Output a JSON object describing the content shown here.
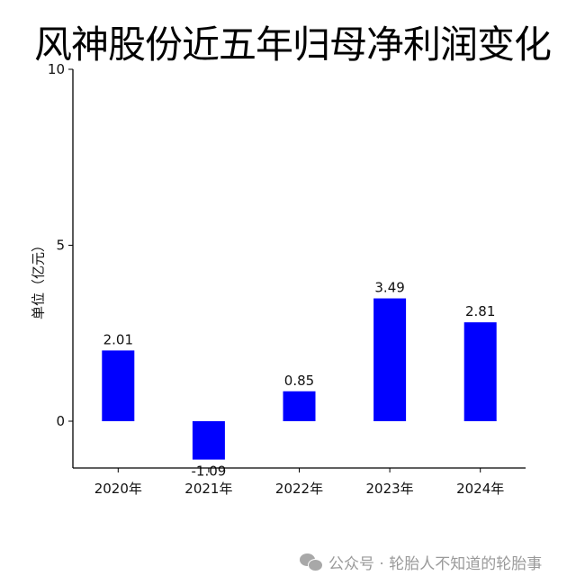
{
  "title": "风神股份近五年归母净利润变化",
  "watermark": {
    "icon": "wechat-icon",
    "text": "公众号 · 轮胎人不知道的轮胎事"
  },
  "colors": {
    "bar": "#0000ff",
    "axis": "#000000",
    "watermark": "#9a9a9a"
  },
  "chart_data": {
    "type": "bar",
    "title": "风神股份近五年归母净利润变化",
    "xlabel": "",
    "ylabel": "单位（亿元）",
    "categories": [
      "2020年",
      "2021年",
      "2022年",
      "2023年",
      "2024年"
    ],
    "values": [
      2.01,
      -1.09,
      0.85,
      3.49,
      2.81
    ],
    "value_labels": [
      "2.01",
      "-1.09",
      "0.85",
      "3.49",
      "2.81"
    ],
    "yticks": [
      0,
      5,
      10
    ],
    "ytick_labels": [
      "0",
      "5",
      "10"
    ],
    "ylim": [
      -1.33,
      10
    ],
    "grid": false,
    "legend": null,
    "bar_color": "#0000ff"
  }
}
